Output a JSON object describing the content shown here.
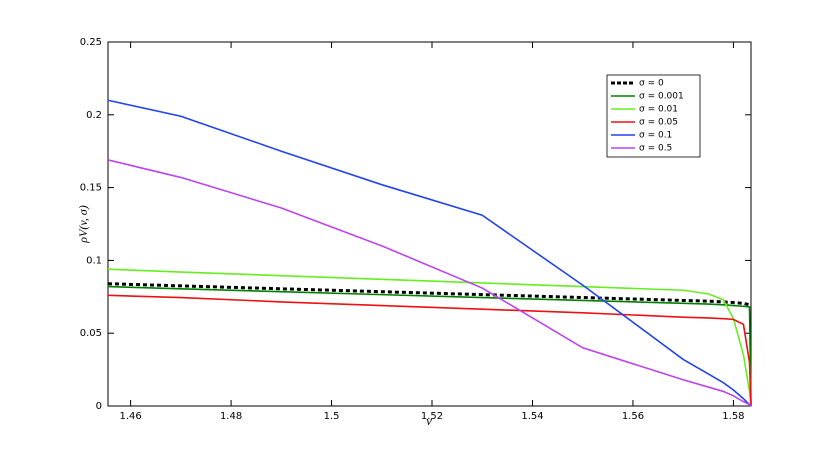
{
  "chart_data": {
    "type": "line",
    "xlabel": "v",
    "ylabel": "ρV(v, σ)",
    "x": [
      1.4555,
      1.47,
      1.49,
      1.51,
      1.53,
      1.55,
      1.57,
      1.575,
      1.578,
      1.58,
      1.582,
      1.5832,
      1.5835
    ],
    "series": [
      {
        "name": "σ = 0",
        "color": "#000000",
        "dashed": true,
        "values": [
          0.084,
          0.0825,
          0.0805,
          0.0785,
          0.0765,
          0.0745,
          0.0725,
          0.072,
          0.0715,
          0.071,
          0.0705,
          0.0695,
          null
        ]
      },
      {
        "name": "σ = 0.001",
        "color": "#008000",
        "values": [
          0.082,
          0.0805,
          0.0785,
          0.0765,
          0.0745,
          0.0725,
          0.0705,
          0.07,
          0.0695,
          0.069,
          0.0685,
          0.068,
          0
        ]
      },
      {
        "name": "σ = 0.01",
        "color": "#66ee22",
        "values": [
          0.094,
          0.092,
          0.0895,
          0.087,
          0.0845,
          0.082,
          0.0795,
          0.077,
          0.073,
          0.06,
          0.035,
          0.01,
          0
        ]
      },
      {
        "name": "σ = 0.05",
        "color": "#ee1111",
        "values": [
          0.076,
          0.0745,
          0.0715,
          0.069,
          0.0665,
          0.064,
          0.061,
          0.0605,
          0.06,
          0.0595,
          0.056,
          0.03,
          0
        ]
      },
      {
        "name": "σ = 0.1",
        "color": "#2244ee",
        "values": [
          0.21,
          0.199,
          0.175,
          0.152,
          0.131,
          0.083,
          0.032,
          0.022,
          0.016,
          0.011,
          0.005,
          0.001,
          0
        ]
      },
      {
        "name": "σ = 0.5",
        "color": "#bb44ee",
        "values": [
          0.169,
          0.157,
          0.136,
          0.11,
          0.081,
          0.04,
          0.018,
          0.013,
          0.01,
          0.007,
          0.003,
          0.001,
          0
        ]
      }
    ],
    "xlim": [
      1.4555,
      1.5835
    ],
    "xticks": [
      1.46,
      1.48,
      1.5,
      1.52,
      1.54,
      1.56,
      1.58
    ],
    "ylim": [
      0,
      0.25
    ],
    "yticks": [
      0,
      0.05,
      0.1,
      0.15,
      0.2,
      0.25
    ],
    "legend": "upper right"
  }
}
